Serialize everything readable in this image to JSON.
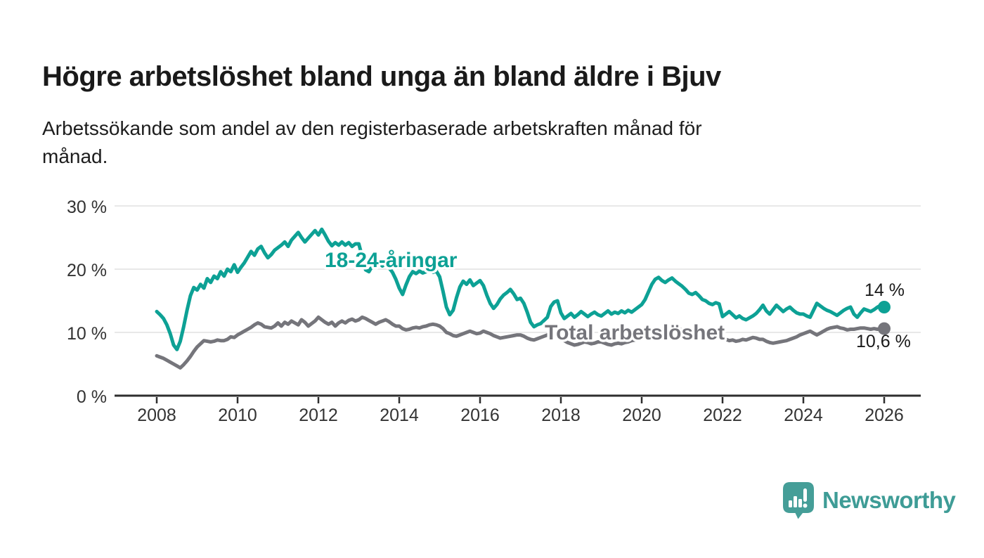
{
  "header": {
    "title": "Högre arbetslöshet bland unga än bland äldre i Bjuv",
    "subtitle_lines": [
      "Arbetssökande som andel av den registerbaserade arbetskraften månad för",
      "månad."
    ]
  },
  "chart_data": {
    "type": "line",
    "title": "Högre arbetslöshet bland unga än bland äldre i Bjuv",
    "xlabel": "",
    "ylabel": "Arbetssökande som andel av den registerbaserade arbetskraften",
    "unit": "%",
    "grid": "horizontal",
    "ylim": [
      0,
      30
    ],
    "x_start": "2008-01",
    "x_end": "2026-01",
    "x_cadence": "monthly",
    "x_ticks": [
      "2008",
      "2010",
      "2012",
      "2014",
      "2016",
      "2018",
      "2020",
      "2022",
      "2024",
      "2026"
    ],
    "y_ticks": [
      {
        "value": 0,
        "label": "0 %"
      },
      {
        "value": 10,
        "label": "10 %"
      },
      {
        "value": 20,
        "label": "20 %"
      },
      {
        "value": 30,
        "label": "30 %"
      }
    ],
    "series": [
      {
        "id": "total",
        "name": "Total arbetslöshet",
        "color": "#75757b",
        "end_label": "10,6 %",
        "end_value": 10.6,
        "values": [
          6.3,
          6.1,
          5.9,
          5.6,
          5.3,
          5.0,
          4.7,
          4.4,
          4.9,
          5.5,
          6.2,
          7.0,
          7.7,
          8.2,
          8.7,
          8.6,
          8.5,
          8.6,
          8.8,
          8.7,
          8.7,
          8.9,
          9.3,
          9.2,
          9.6,
          9.9,
          10.2,
          10.5,
          10.8,
          11.2,
          11.5,
          11.3,
          10.9,
          10.8,
          10.7,
          11.0,
          11.5,
          11.0,
          11.6,
          11.3,
          11.8,
          11.5,
          11.2,
          12.0,
          11.6,
          11.0,
          11.4,
          11.8,
          12.4,
          12.0,
          11.6,
          11.3,
          11.6,
          11.0,
          11.5,
          11.8,
          11.5,
          11.9,
          12.1,
          11.8,
          12.0,
          12.4,
          12.2,
          11.9,
          11.6,
          11.3,
          11.6,
          11.8,
          12.0,
          11.7,
          11.3,
          11.0,
          11.0,
          10.6,
          10.4,
          10.5,
          10.7,
          10.8,
          10.7,
          10.9,
          11.0,
          11.2,
          11.3,
          11.2,
          11.0,
          10.6,
          10.0,
          9.8,
          9.5,
          9.4,
          9.6,
          9.8,
          10.0,
          10.2,
          10.0,
          9.8,
          9.9,
          10.2,
          10.0,
          9.8,
          9.5,
          9.3,
          9.1,
          9.2,
          9.3,
          9.4,
          9.5,
          9.6,
          9.6,
          9.4,
          9.1,
          8.9,
          8.8,
          9.0,
          9.2,
          9.4,
          9.6,
          9.8,
          9.6,
          9.4,
          9.0,
          8.7,
          8.4,
          8.2,
          8.0,
          8.1,
          8.3,
          8.5,
          8.4,
          8.2,
          8.3,
          8.5,
          8.5,
          8.3,
          8.1,
          8.0,
          8.2,
          8.3,
          8.2,
          8.4,
          8.5,
          8.7,
          8.8,
          8.9,
          9.2,
          9.5,
          9.9,
          10.2,
          10.4,
          10.5,
          10.4,
          10.5,
          10.6,
          10.5,
          10.4,
          10.5,
          10.4,
          10.5,
          10.3,
          10.4,
          10.2,
          10.3,
          10.1,
          10.0,
          9.8,
          9.7,
          9.5,
          9.3,
          9.1,
          8.9,
          8.7,
          8.8,
          8.6,
          8.7,
          8.9,
          8.8,
          9.0,
          9.2,
          9.1,
          8.9,
          8.9,
          8.6,
          8.4,
          8.3,
          8.4,
          8.5,
          8.6,
          8.7,
          8.9,
          9.1,
          9.3,
          9.6,
          9.8,
          10.0,
          10.2,
          9.9,
          9.6,
          9.9,
          10.2,
          10.5,
          10.7,
          10.8,
          10.9,
          10.7,
          10.6,
          10.4,
          10.5,
          10.5,
          10.6,
          10.7,
          10.7,
          10.6,
          10.5,
          10.6,
          10.5,
          10.6,
          10.6
        ]
      },
      {
        "id": "youth",
        "name": "18-24-åringar",
        "color": "#0da195",
        "end_label": "14 %",
        "end_value": 14,
        "values": [
          13.3,
          12.8,
          12.2,
          11.2,
          9.8,
          8.0,
          7.3,
          8.6,
          10.9,
          13.5,
          15.8,
          17.1,
          16.7,
          17.6,
          17.0,
          18.5,
          17.9,
          18.9,
          18.5,
          19.6,
          18.9,
          20.0,
          19.6,
          20.7,
          19.5,
          20.3,
          21.0,
          21.9,
          22.8,
          22.2,
          23.2,
          23.6,
          22.6,
          21.8,
          22.3,
          23.0,
          23.4,
          23.8,
          24.3,
          23.6,
          24.6,
          25.2,
          25.8,
          25.0,
          24.3,
          24.9,
          25.5,
          26.1,
          25.4,
          26.3,
          25.4,
          24.4,
          23.7,
          24.2,
          23.8,
          24.3,
          23.8,
          24.2,
          23.6,
          24.0,
          24.0,
          22.0,
          19.9,
          19.6,
          20.5,
          21.2,
          21.0,
          20.5,
          20.8,
          20.2,
          19.5,
          18.4,
          17.0,
          16.0,
          17.5,
          18.8,
          19.6,
          19.3,
          19.7,
          19.4,
          19.6,
          19.8,
          19.5,
          19.7,
          18.8,
          16.5,
          14.0,
          12.8,
          13.5,
          15.5,
          17.2,
          18.1,
          17.6,
          18.3,
          17.4,
          17.8,
          18.2,
          17.4,
          15.9,
          14.6,
          13.8,
          14.4,
          15.3,
          15.9,
          16.3,
          16.8,
          16.1,
          15.2,
          15.4,
          14.6,
          13.2,
          11.6,
          10.9,
          11.2,
          11.4,
          11.9,
          12.4,
          14.1,
          14.8,
          15.0,
          13.1,
          12.2,
          12.6,
          13.0,
          12.4,
          12.8,
          13.3,
          12.9,
          12.5,
          12.9,
          13.2,
          12.8,
          12.6,
          13.0,
          13.4,
          12.9,
          13.2,
          13.0,
          13.4,
          13.1,
          13.5,
          13.2,
          13.6,
          14.0,
          14.4,
          15.2,
          16.4,
          17.6,
          18.4,
          18.7,
          18.2,
          17.9,
          18.3,
          18.6,
          18.1,
          17.7,
          17.3,
          16.8,
          16.2,
          16.0,
          16.3,
          15.8,
          15.2,
          15.0,
          14.6,
          14.4,
          14.7,
          14.5,
          12.5,
          12.9,
          13.3,
          12.8,
          12.3,
          12.6,
          12.2,
          12.0,
          12.3,
          12.6,
          13.0,
          13.6,
          14.3,
          13.4,
          12.9,
          13.6,
          14.3,
          13.8,
          13.3,
          13.7,
          14.0,
          13.5,
          13.1,
          12.9,
          12.9,
          12.6,
          12.4,
          13.5,
          14.6,
          14.2,
          13.8,
          13.5,
          13.3,
          13.0,
          12.7,
          13.1,
          13.5,
          13.8,
          14.0,
          12.9,
          12.4,
          13.1,
          13.7,
          13.5,
          13.3,
          13.6,
          14.0,
          14.3,
          14.0
        ]
      }
    ],
    "colors": {
      "youth": "#0da195",
      "total": "#75757b",
      "gridline": "#e1e1e1",
      "axis": "#2e2e2e",
      "tick_label": "#333333",
      "annotation": "#1a1a1a"
    }
  },
  "logo": {
    "text": "Newsworthy",
    "color": "#3e9c96",
    "icon": "speech-bubble-bar-chart"
  }
}
